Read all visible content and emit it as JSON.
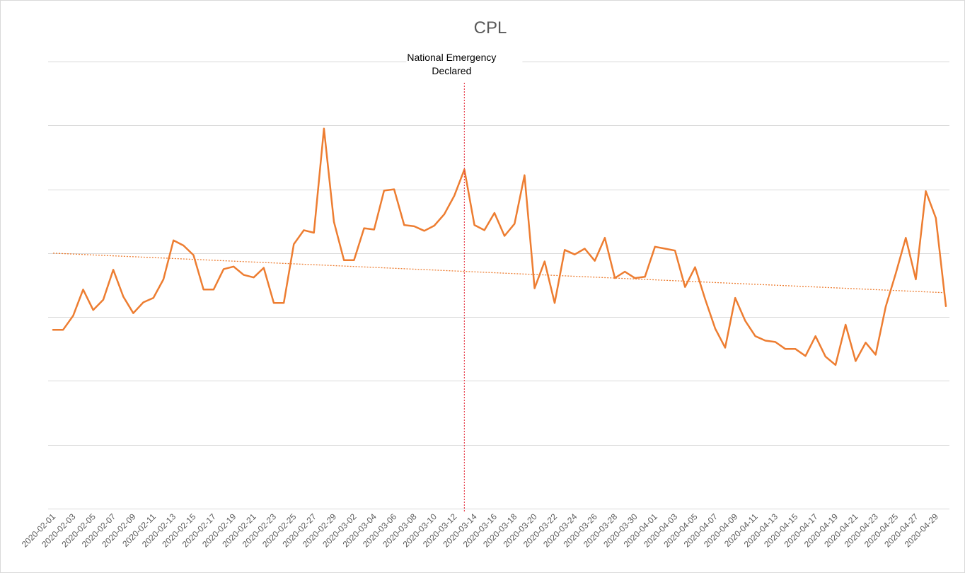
{
  "chart_data": {
    "type": "line",
    "title": "CPL",
    "xlabel": "",
    "ylabel": "",
    "ylim": [
      0,
      7
    ],
    "y_gridlines": 7,
    "y_tick_labels_visible": false,
    "grid": true,
    "x": [
      "2020-02-01",
      "2020-02-02",
      "2020-02-03",
      "2020-02-04",
      "2020-02-05",
      "2020-02-06",
      "2020-02-07",
      "2020-02-08",
      "2020-02-09",
      "2020-02-10",
      "2020-02-11",
      "2020-02-12",
      "2020-02-13",
      "2020-02-14",
      "2020-02-15",
      "2020-02-16",
      "2020-02-17",
      "2020-02-18",
      "2020-02-19",
      "2020-02-20",
      "2020-02-21",
      "2020-02-22",
      "2020-02-23",
      "2020-02-24",
      "2020-02-25",
      "2020-02-26",
      "2020-02-27",
      "2020-02-28",
      "2020-02-29",
      "2020-03-01",
      "2020-03-02",
      "2020-03-03",
      "2020-03-04",
      "2020-03-05",
      "2020-03-06",
      "2020-03-07",
      "2020-03-08",
      "2020-03-09",
      "2020-03-10",
      "2020-03-11",
      "2020-03-12",
      "2020-03-13",
      "2020-03-14",
      "2020-03-15",
      "2020-03-16",
      "2020-03-17",
      "2020-03-18",
      "2020-03-19",
      "2020-03-20",
      "2020-03-21",
      "2020-03-22",
      "2020-03-23",
      "2020-03-24",
      "2020-03-25",
      "2020-03-26",
      "2020-03-27",
      "2020-03-28",
      "2020-03-29",
      "2020-03-30",
      "2020-03-31",
      "2020-04-01",
      "2020-04-02",
      "2020-04-03",
      "2020-04-04",
      "2020-04-05",
      "2020-04-06",
      "2020-04-07",
      "2020-04-08",
      "2020-04-09",
      "2020-04-10",
      "2020-04-11",
      "2020-04-12",
      "2020-04-13",
      "2020-04-14",
      "2020-04-15",
      "2020-04-16",
      "2020-04-17",
      "2020-04-18",
      "2020-04-19",
      "2020-04-20",
      "2020-04-21",
      "2020-04-22",
      "2020-04-23",
      "2020-04-24",
      "2020-04-25",
      "2020-04-26",
      "2020-04-27",
      "2020-04-28",
      "2020-04-29",
      "2020-04-30"
    ],
    "x_tick_labels": [
      "2020-02-01",
      "2020-02-03",
      "2020-02-05",
      "2020-02-07",
      "2020-02-09",
      "2020-02-11",
      "2020-02-13",
      "2020-02-15",
      "2020-02-17",
      "2020-02-19",
      "2020-02-21",
      "2020-02-23",
      "2020-02-25",
      "2020-02-27",
      "2020-02-29",
      "2020-03-02",
      "2020-03-04",
      "2020-03-06",
      "2020-03-08",
      "2020-03-10",
      "2020-03-12",
      "2020-03-14",
      "2020-03-16",
      "2020-03-18",
      "2020-03-20",
      "2020-03-22",
      "2020-03-24",
      "2020-03-26",
      "2020-03-28",
      "2020-03-30",
      "2020-04-01",
      "2020-04-03",
      "2020-04-05",
      "2020-04-07",
      "2020-04-09",
      "2020-04-11",
      "2020-04-13",
      "2020-04-15",
      "2020-04-17",
      "2020-04-19",
      "2020-04-21",
      "2020-04-23",
      "2020-04-25",
      "2020-04-27",
      "2020-04-29"
    ],
    "series": [
      {
        "color": "#ED7D31",
        "values": [
          2.8,
          2.8,
          3.02,
          3.43,
          3.11,
          3.27,
          3.74,
          3.32,
          3.06,
          3.23,
          3.3,
          3.59,
          4.2,
          4.12,
          3.97,
          3.43,
          3.43,
          3.75,
          3.79,
          3.66,
          3.62,
          3.77,
          3.22,
          3.22,
          4.14,
          4.36,
          4.32,
          5.95,
          4.49,
          3.89,
          3.89,
          4.39,
          4.37,
          4.98,
          5.0,
          4.44,
          4.42,
          4.35,
          4.43,
          4.61,
          4.9,
          5.31,
          4.44,
          4.36,
          4.63,
          4.27,
          4.46,
          5.22,
          3.45,
          3.87,
          3.22,
          4.05,
          3.98,
          4.07,
          3.88,
          4.24,
          3.61,
          3.71,
          3.61,
          3.63,
          4.1,
          4.07,
          4.04,
          3.47,
          3.78,
          3.28,
          2.82,
          2.52,
          3.3,
          2.94,
          2.7,
          2.63,
          2.61,
          2.5,
          2.5,
          2.39,
          2.7,
          2.38,
          2.25,
          2.88,
          2.31,
          2.6,
          2.41,
          3.16,
          3.68,
          4.24,
          3.59,
          4.97,
          4.55,
          3.17
        ]
      }
    ],
    "trendline": {
      "style": "dotted",
      "color": "#ED7D31",
      "start": 4.0,
      "end": 3.38
    },
    "annotations": [
      {
        "x": "2020-03-13",
        "text_lines": [
          "National Emergency",
          "Declared"
        ],
        "line_color": "#E8434F",
        "line_style": "dotted"
      }
    ],
    "colors": {
      "gridline": "#d9d9d9",
      "text": "#595959"
    }
  }
}
